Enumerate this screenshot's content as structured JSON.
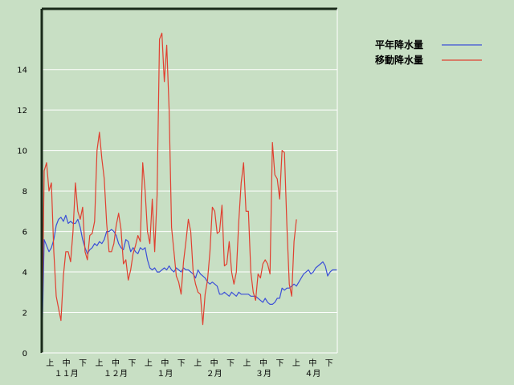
{
  "chart_data": {
    "type": "line",
    "ylim": [
      0,
      17
    ],
    "yticks": [
      0,
      2,
      4,
      6,
      8,
      10,
      12,
      14
    ],
    "grid": true,
    "legend_position": "top-right",
    "x_day_labels": [
      "上",
      "中",
      "下",
      "上",
      "中",
      "下",
      "上",
      "中",
      "下",
      "上",
      "中",
      "下",
      "上",
      "中",
      "下",
      "上",
      "中",
      "下"
    ],
    "x_month_labels": [
      "１１月",
      "１２月",
      "１月",
      "２月",
      "３月",
      "４月"
    ],
    "colors": {
      "平年降水量": "#3b4fd8",
      "移動降水量": "#e04030"
    },
    "series": [
      {
        "name": "平年降水量",
        "color": "#3b4fd8",
        "values": [
          0,
          5.6,
          5.3,
          5.0,
          5.2,
          5.6,
          6.3,
          6.6,
          6.7,
          6.5,
          6.8,
          6.4,
          6.5,
          6.4,
          6.4,
          6.6,
          6.2,
          5.6,
          5.2,
          4.9,
          5.1,
          5.2,
          5.4,
          5.3,
          5.5,
          5.4,
          5.6,
          6.0,
          6.0,
          6.1,
          6.0,
          5.8,
          5.4,
          5.2,
          5.1,
          5.6,
          5.5,
          5.0,
          5.2,
          5.0,
          4.9,
          5.2,
          5.1,
          5.2,
          4.6,
          4.2,
          4.1,
          4.2,
          4.0,
          4.0,
          4.1,
          4.2,
          4.1,
          4.3,
          4.1,
          4.0,
          4.2,
          4.1,
          4.0,
          4.2,
          4.1,
          4.1,
          4.0,
          3.9,
          3.7,
          4.1,
          3.9,
          3.8,
          3.7,
          3.5,
          3.4,
          3.5,
          3.4,
          3.3,
          2.9,
          2.9,
          3.0,
          2.9,
          2.8,
          3.0,
          2.9,
          2.8,
          3.0,
          2.9,
          2.9,
          2.9,
          2.9,
          2.8,
          2.8,
          2.8,
          2.7,
          2.6,
          2.5,
          2.7,
          2.5,
          2.4,
          2.4,
          2.5,
          2.7,
          2.7,
          3.2,
          3.1,
          3.2,
          3.2,
          3.3,
          3.4,
          3.3,
          3.5,
          3.7,
          3.9,
          4.0,
          4.1,
          3.9,
          4.0,
          4.2,
          4.3,
          4.4,
          4.5,
          4.3,
          3.8,
          4.0,
          4.1,
          4.1,
          4.1
        ]
      },
      {
        "name": "移動降水量",
        "color": "#e04030",
        "values": [
          0,
          9.0,
          9.4,
          8.0,
          8.4,
          5.0,
          2.8,
          2.2,
          1.6,
          3.8,
          5.0,
          5.0,
          4.5,
          6.0,
          8.4,
          7.0,
          6.6,
          7.2,
          5.0,
          4.6,
          5.8,
          5.9,
          6.5,
          10.0,
          10.9,
          9.6,
          8.6,
          6.4,
          5.0,
          5.0,
          5.4,
          6.3,
          6.9,
          6.1,
          4.4,
          4.6,
          3.6,
          4.1,
          4.9,
          5.3,
          5.8,
          5.5,
          9.4,
          8.0,
          6.0,
          5.4,
          7.6,
          5.0,
          7.8,
          15.5,
          15.8,
          13.4,
          15.2,
          12.0,
          6.2,
          5.0,
          3.8,
          3.5,
          2.9,
          4.5,
          5.5,
          6.6,
          6.0,
          4.0,
          3.4,
          3.0,
          2.9,
          1.4,
          2.9,
          3.6,
          5.0,
          7.2,
          7.0,
          5.9,
          6.0,
          7.3,
          4.3,
          4.4,
          5.5,
          4.0,
          3.4,
          4.0,
          6.5,
          8.4,
          9.4,
          7.0,
          7.0,
          4.0,
          3.0,
          2.6,
          3.9,
          3.7,
          4.4,
          4.6,
          4.4,
          3.9,
          10.4,
          8.8,
          8.6,
          7.6,
          10.0,
          9.9,
          6.3,
          3.4,
          2.8,
          5.5,
          6.6
        ]
      }
    ]
  }
}
